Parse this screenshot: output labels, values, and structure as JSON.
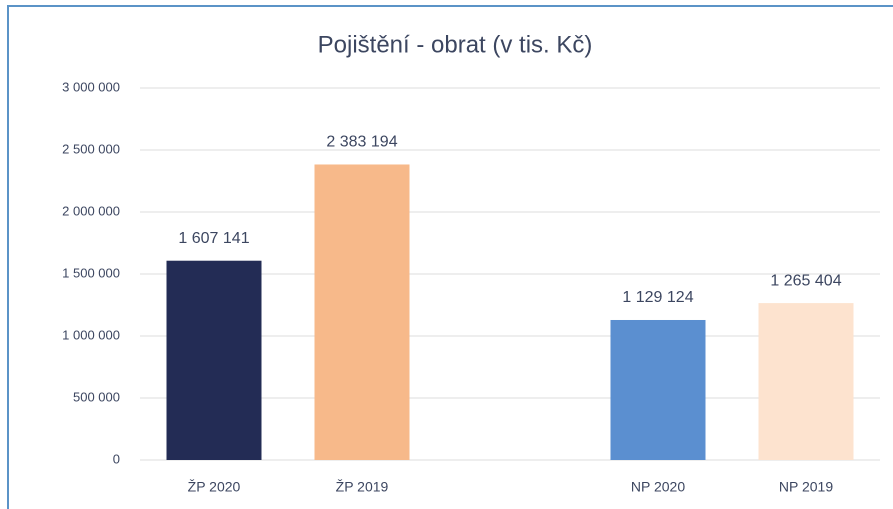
{
  "chart_data": {
    "type": "bar",
    "title": "Pojištění - obrat (v tis. Kč)",
    "categories": [
      "ŽP 2020",
      "ŽP 2019",
      null,
      "NP 2020",
      "NP 2019"
    ],
    "values": [
      1607141,
      2383194,
      null,
      1129124,
      1265404
    ],
    "value_labels": [
      "1 607 141",
      "2 383 194",
      null,
      "1 129 124",
      "1 265 404"
    ],
    "colors": [
      "#232c55",
      "#f7b98a",
      null,
      "#5b8fd0",
      "#fde3cf"
    ],
    "ylim": [
      0,
      3000000
    ],
    "yticks": [
      0,
      {
        "value": 500000,
        "label": "500 000"
      },
      {
        "value": 1000000,
        "label": "1 000 000"
      },
      {
        "value": 1500000,
        "label": "1 500 000"
      },
      {
        "value": 2000000,
        "label": "2 000 000"
      },
      {
        "value": 2500000,
        "label": "2 500 000"
      },
      {
        "value": 3000000,
        "label": "3 000 000"
      }
    ],
    "grid": true
  }
}
